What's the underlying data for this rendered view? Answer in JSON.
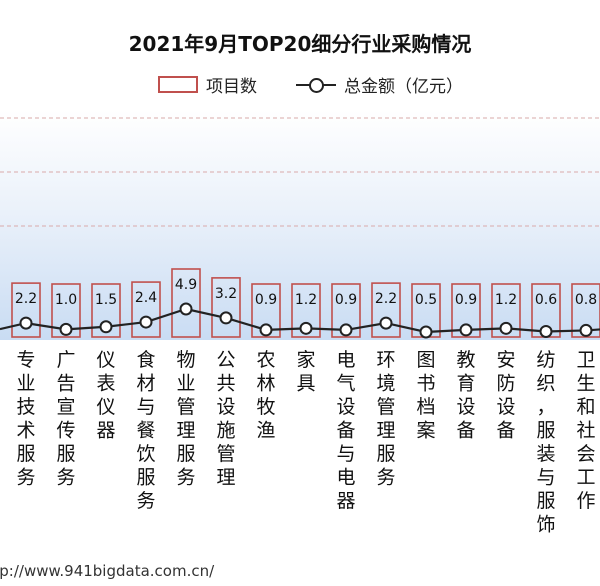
{
  "chart_data": {
    "type": "bar",
    "title": "2021年9月TOP20细分行业采购情况",
    "categories": [
      "专业技术服务",
      "广告宣传服务",
      "仪表仪器",
      "食材与餐饮服务",
      "物业管理服务",
      "公共设施管理",
      "农林牧渔",
      "家具",
      "电气设备与电器",
      "环境管理服务",
      "图书档案",
      "教育设备",
      "安防设备",
      "纺织，服装与服饰",
      "卫生和社会工作"
    ],
    "category_labels": [
      "专业技术服务",
      "广告宣传服务",
      "仪表仪器",
      "食材与餐饮服务",
      "物业管理服务",
      "公共设施管理",
      "农林牧渔",
      "家具",
      "电气设备与电器",
      "环境管理服务",
      "图书档案",
      "教育设备",
      "安防设备",
      "纺织，服装与服饰",
      "卫生和社会工作"
    ],
    "series": [
      {
        "name": "项目数",
        "type": "bar",
        "color": "#c0504d",
        "values": [
          null,
          null,
          null,
          null,
          null,
          null,
          null,
          null,
          null,
          null,
          null,
          null,
          null,
          null,
          null
        ]
      },
      {
        "name": "总金额（亿元）",
        "type": "line",
        "color": "#222222",
        "values": [
          2.2,
          1.0,
          1.5,
          2.4,
          4.9,
          3.2,
          0.9,
          1.2,
          0.9,
          2.2,
          0.5,
          0.9,
          1.2,
          0.6,
          0.8
        ]
      }
    ],
    "data_labels": [
      "2.2",
      "1.0",
      "1.5",
      "2.4",
      "4.9",
      "3.2",
      "0.9",
      "1.2",
      "0.9",
      "2.2",
      "0.5",
      "0.9",
      "1.2",
      "0.6",
      "0.8"
    ],
    "grid": true,
    "legend_position": "top",
    "colors": {
      "bar_border": "#c0504d",
      "line": "#222222",
      "background_gradient": "#c9dcf3",
      "grid": "#d9aaaa"
    }
  },
  "source_text": "http://www.941bigdata.com.cn/"
}
